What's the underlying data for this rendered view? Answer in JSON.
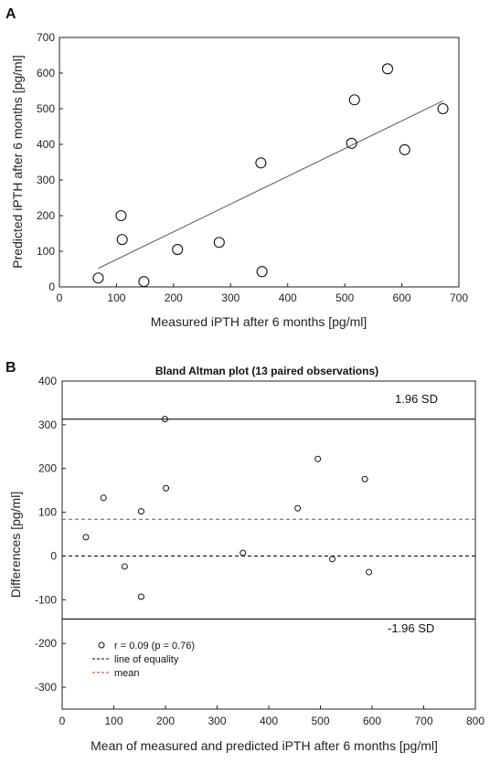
{
  "chart_data": [
    {
      "panel": "A",
      "type": "scatter",
      "xlabel": "Measured iPTH after 6 months [pg/ml]",
      "ylabel": "Predicted iPTH after 6 months [pg/ml]",
      "xlim": [
        0,
        700
      ],
      "ylim": [
        0,
        700
      ],
      "xticks": [
        0,
        100,
        200,
        300,
        400,
        500,
        600,
        700
      ],
      "yticks": [
        0,
        100,
        200,
        300,
        400,
        500,
        600,
        700
      ],
      "grid": false,
      "points": [
        {
          "x": 68,
          "y": 25
        },
        {
          "x": 108,
          "y": 200
        },
        {
          "x": 110,
          "y": 133
        },
        {
          "x": 148,
          "y": 15
        },
        {
          "x": 207,
          "y": 105
        },
        {
          "x": 280,
          "y": 125
        },
        {
          "x": 353,
          "y": 348
        },
        {
          "x": 355,
          "y": 43
        },
        {
          "x": 512,
          "y": 403
        },
        {
          "x": 517,
          "y": 525
        },
        {
          "x": 575,
          "y": 612
        },
        {
          "x": 605,
          "y": 385
        },
        {
          "x": 672,
          "y": 500
        }
      ],
      "fit_line": [
        {
          "x": 68,
          "y": 52
        },
        {
          "x": 672,
          "y": 522
        }
      ]
    },
    {
      "panel": "B",
      "type": "scatter",
      "title": "Bland Altman plot (13 paired observations)",
      "xlabel": "Mean of measured and predicted iPTH after 6 months [pg/ml]",
      "ylabel": "Differences [pg/ml]",
      "xlim": [
        0,
        800
      ],
      "ylim": [
        -350,
        400
      ],
      "xticks": [
        0,
        100,
        200,
        300,
        400,
        500,
        600,
        700,
        800
      ],
      "yticks": [
        -300,
        -200,
        -100,
        0,
        100,
        200,
        300,
        400
      ],
      "grid": false,
      "points": [
        {
          "x": 46,
          "y": 43
        },
        {
          "x": 80,
          "y": 133
        },
        {
          "x": 121,
          "y": -24
        },
        {
          "x": 153,
          "y": 102
        },
        {
          "x": 153,
          "y": -93
        },
        {
          "x": 199,
          "y": 313
        },
        {
          "x": 201,
          "y": 155
        },
        {
          "x": 350,
          "y": 7
        },
        {
          "x": 456,
          "y": 109
        },
        {
          "x": 495,
          "y": 222
        },
        {
          "x": 523,
          "y": -7
        },
        {
          "x": 586,
          "y": 176
        },
        {
          "x": 594,
          "y": -37
        }
      ],
      "upper_loa": 313,
      "lower_loa": -144,
      "mean_diff": 84,
      "equality": 0,
      "upper_label": "1.96 SD",
      "lower_label": "-1.96 SD",
      "legend_position": "bottom-left",
      "legend": [
        {
          "label": "r = 0.09 (p = 0.76)",
          "marker": "circle"
        },
        {
          "label": "line of equality",
          "marker": "dashed-black"
        },
        {
          "label": "mean",
          "marker": "dashed-red"
        }
      ],
      "colors": {
        "mean": "#c0392b",
        "equality": "#000000"
      }
    }
  ],
  "panels": {
    "a": "A",
    "b": "B"
  }
}
